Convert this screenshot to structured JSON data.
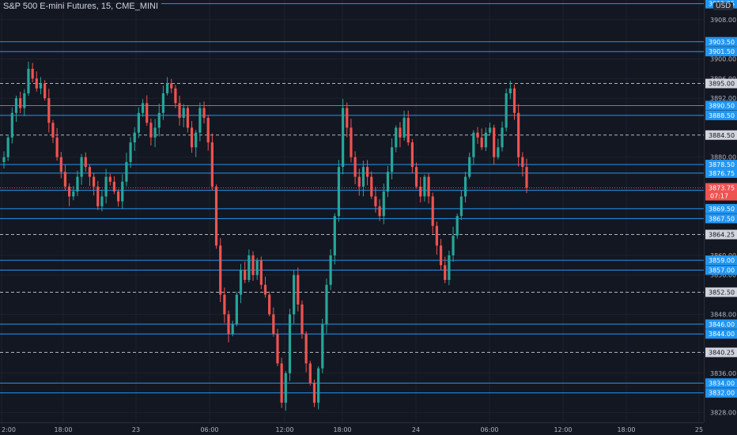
{
  "header": {
    "title": "S&P 500 E-mini Futures, 15, CME_MINI",
    "currency": "USD"
  },
  "colors": {
    "background": "#131722",
    "up": "#26a69a",
    "down": "#ef5350",
    "level_line": "#2196f3",
    "dashed_line": "#b2b5be",
    "grid": "#1e222d",
    "axis_text": "#b2b5be"
  },
  "price_axis": {
    "min": 3826,
    "max": 3912,
    "tick_labels": [
      "3908.00",
      "3900.00",
      "3896.00",
      "3892.00",
      "3880.00",
      "3860.00",
      "3856.00",
      "3848.00",
      "3836.00",
      "3828.00"
    ]
  },
  "time_axis": {
    "tick_labels": [
      "2:00",
      "18:00",
      "23",
      "06:00",
      "12:00",
      "18:00",
      "24",
      "06:00",
      "12:00",
      "18:00",
      "25"
    ]
  },
  "level_lines": [
    {
      "label": "3911.25",
      "type": "solid"
    },
    {
      "label": "3903.50",
      "type": "solid"
    },
    {
      "label": "3901.50",
      "type": "solid"
    },
    {
      "label": "3895.00",
      "type": "dashed"
    },
    {
      "label": "3890.50",
      "type": "solid"
    },
    {
      "label": "3888.50",
      "type": "solid"
    },
    {
      "label": "3884.50",
      "type": "dashed"
    },
    {
      "label": "3878.50",
      "type": "solid"
    },
    {
      "label": "3876.75",
      "type": "solid"
    },
    {
      "label": "3873.25",
      "type": "solid"
    },
    {
      "label": "3869.50",
      "type": "solid"
    },
    {
      "label": "3867.50",
      "type": "solid"
    },
    {
      "label": "3864.25",
      "type": "dashed"
    },
    {
      "label": "3859.00",
      "type": "solid"
    },
    {
      "label": "3857.00",
      "type": "solid"
    },
    {
      "label": "3852.50",
      "type": "dashed"
    },
    {
      "label": "3846.00",
      "type": "solid"
    },
    {
      "label": "3844.00",
      "type": "solid"
    },
    {
      "label": "3840.25",
      "type": "dashed"
    },
    {
      "label": "3834.00",
      "type": "solid"
    },
    {
      "label": "3832.00",
      "type": "solid"
    }
  ],
  "current_price": {
    "label": "3873.75",
    "countdown": "07:17"
  },
  "chart_data": {
    "type": "candlestick",
    "close_path": [
      3880,
      3884,
      3889,
      3892,
      3890,
      3893,
      3898,
      3896,
      3894,
      3895,
      3892,
      3887,
      3884,
      3880,
      3877,
      3874,
      3872,
      3873,
      3876,
      3880,
      3878,
      3876,
      3874,
      3870,
      3872,
      3876,
      3875,
      3873,
      3871,
      3875,
      3879,
      3883,
      3885,
      3889,
      3891,
      3887,
      3884,
      3886,
      3889,
      3893,
      3895,
      3894,
      3891,
      3888,
      3890,
      3886,
      3882,
      3885,
      3890,
      3888,
      3883,
      3874,
      3862,
      3852,
      3848,
      3844,
      3846,
      3852,
      3857,
      3855,
      3860,
      3856,
      3859,
      3854,
      3852,
      3848,
      3844,
      3838,
      3830,
      3836,
      3848,
      3856,
      3850,
      3844,
      3838,
      3834,
      3830,
      3837,
      3846,
      3854,
      3860,
      3868,
      3878,
      3890,
      3886,
      3880,
      3876,
      3874,
      3878,
      3876,
      3872,
      3870,
      3868,
      3873,
      3877,
      3882,
      3886,
      3884,
      3888,
      3883,
      3878,
      3874,
      3872,
      3876,
      3872,
      3866,
      3862,
      3858,
      3855,
      3860,
      3864,
      3868,
      3872,
      3876,
      3880,
      3885,
      3884,
      3882,
      3885,
      3886,
      3880,
      3882,
      3886,
      3893,
      3894,
      3889,
      3880,
      3878,
      3873.75
    ]
  }
}
